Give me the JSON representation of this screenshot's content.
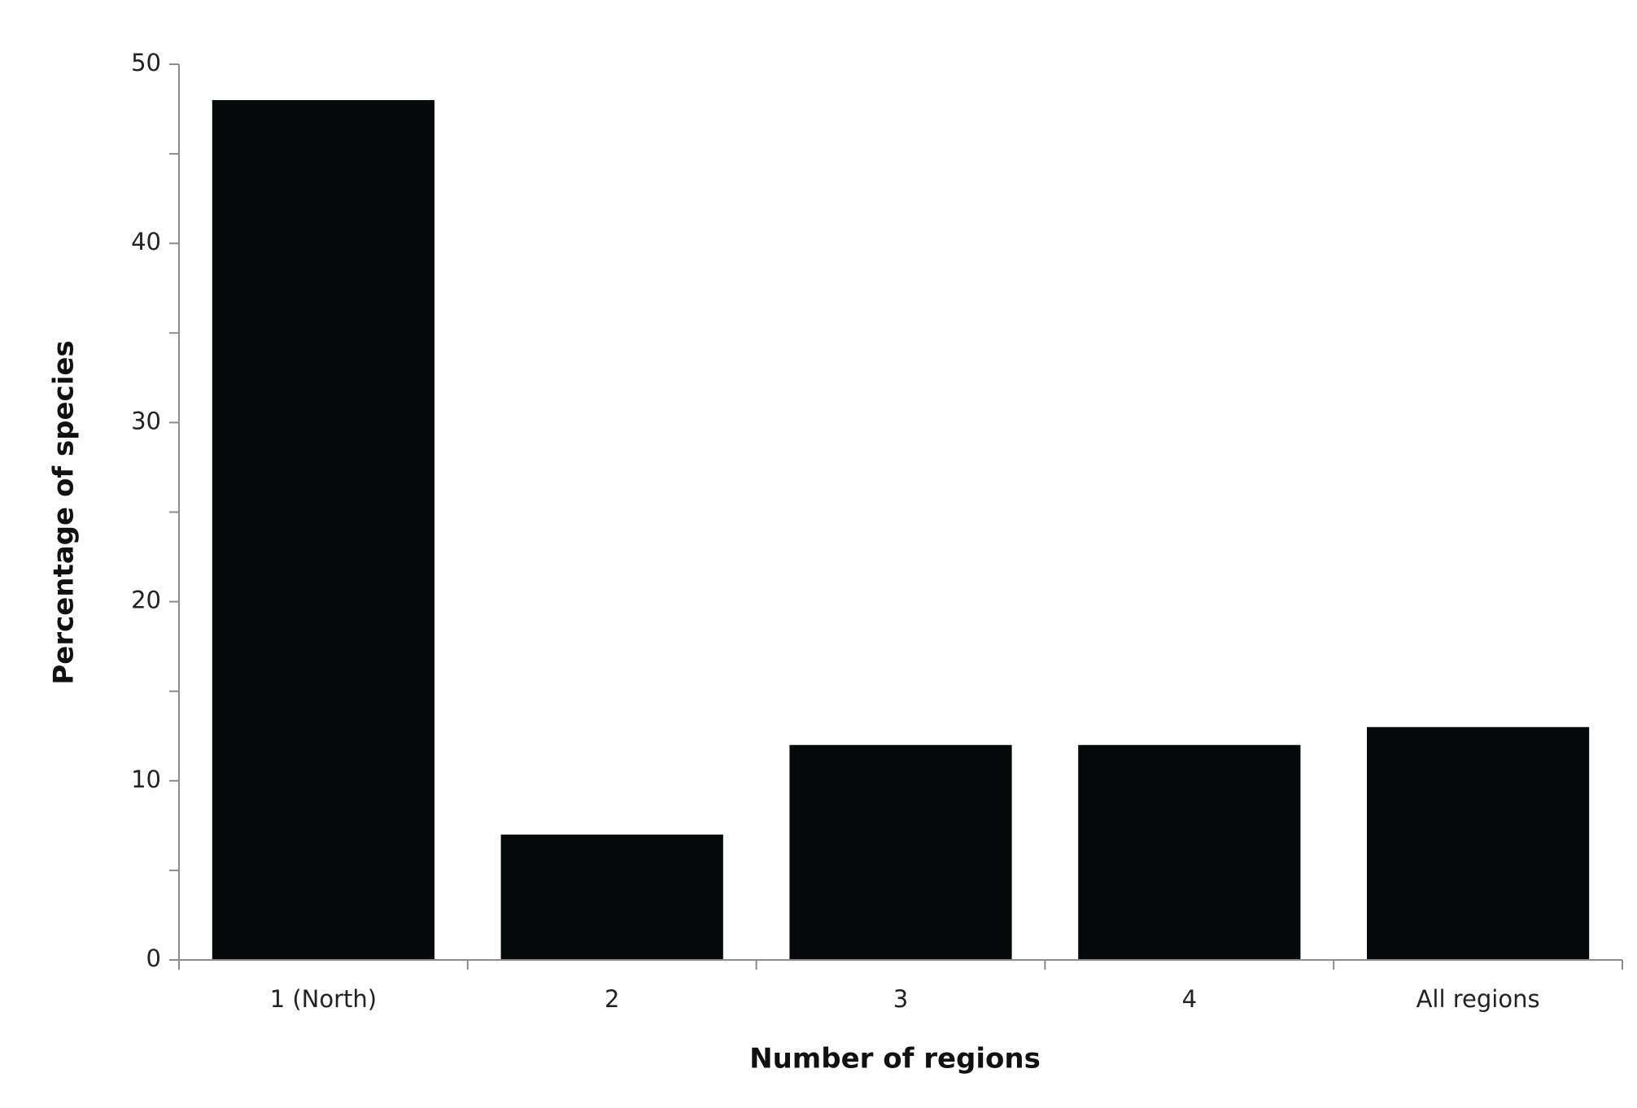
{
  "chart_data": {
    "type": "bar",
    "x_label": "Number of regions",
    "y_label": "Percentage of species",
    "categories": [
      "1 (North)",
      "2",
      "3",
      "4",
      "All regions"
    ],
    "values": [
      48,
      7,
      12,
      12,
      13
    ],
    "color": "#050909",
    "ylim": [
      0,
      50
    ],
    "yticks": [
      0,
      10,
      20,
      30,
      40,
      50
    ],
    "grid": false
  }
}
